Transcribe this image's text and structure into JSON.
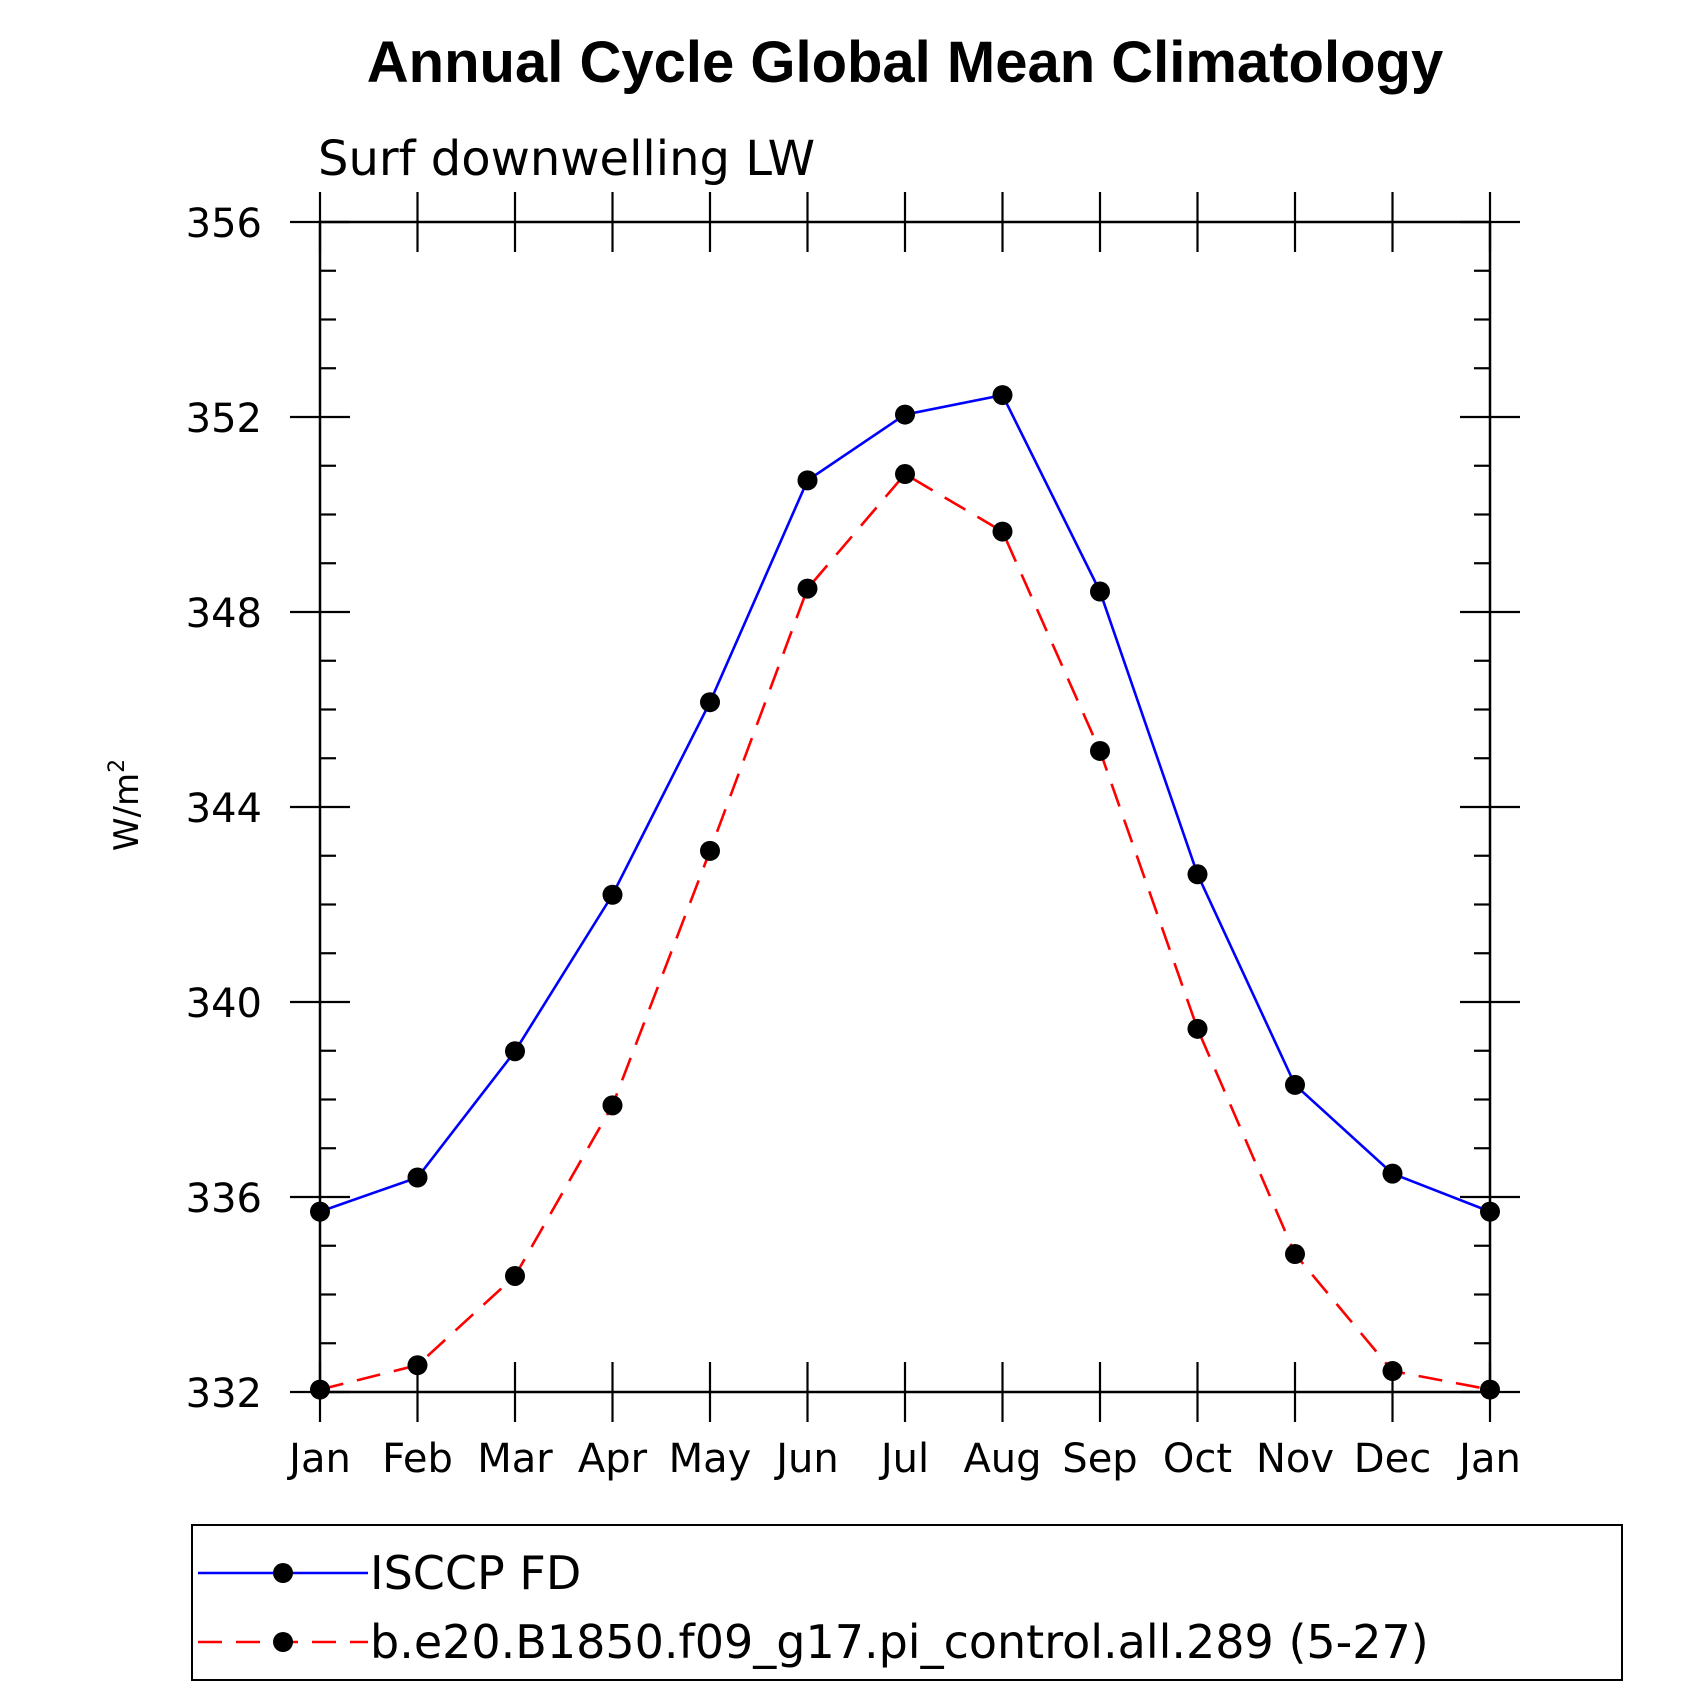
{
  "chart_data": {
    "type": "line",
    "title": "Annual Cycle Global Mean Climatology",
    "subtitle": "Surf downwelling LW",
    "ylabel": "W/m",
    "ylabel_superscript": "2",
    "ylim": [
      332,
      356
    ],
    "yticks": [
      "332",
      "336",
      "340",
      "344",
      "348",
      "352",
      "356"
    ],
    "categories": [
      "Jan",
      "Feb",
      "Mar",
      "Apr",
      "May",
      "Jun",
      "Jul",
      "Aug",
      "Sep",
      "Oct",
      "Nov",
      "Dec",
      "Jan"
    ],
    "grid": false,
    "legend_position": "bottom",
    "series": [
      {
        "name": "ISCCP FD",
        "color": "#0000ff",
        "line_style": "solid",
        "marker": "filled-circle",
        "values": [
          335.7,
          336.4,
          338.99,
          342.2,
          346.15,
          350.7,
          352.05,
          352.45,
          348.42,
          342.62,
          338.3,
          336.48,
          335.7
        ]
      },
      {
        "name": "b.e20.B1850.f09_g17.pi_control.all.289 (5-27)",
        "color": "#ff0000",
        "line_style": "dashed",
        "marker": "filled-circle",
        "values": [
          332.05,
          332.55,
          334.38,
          337.88,
          343.1,
          348.48,
          350.83,
          349.65,
          345.15,
          339.45,
          334.83,
          332.43,
          332.05
        ]
      }
    ]
  }
}
